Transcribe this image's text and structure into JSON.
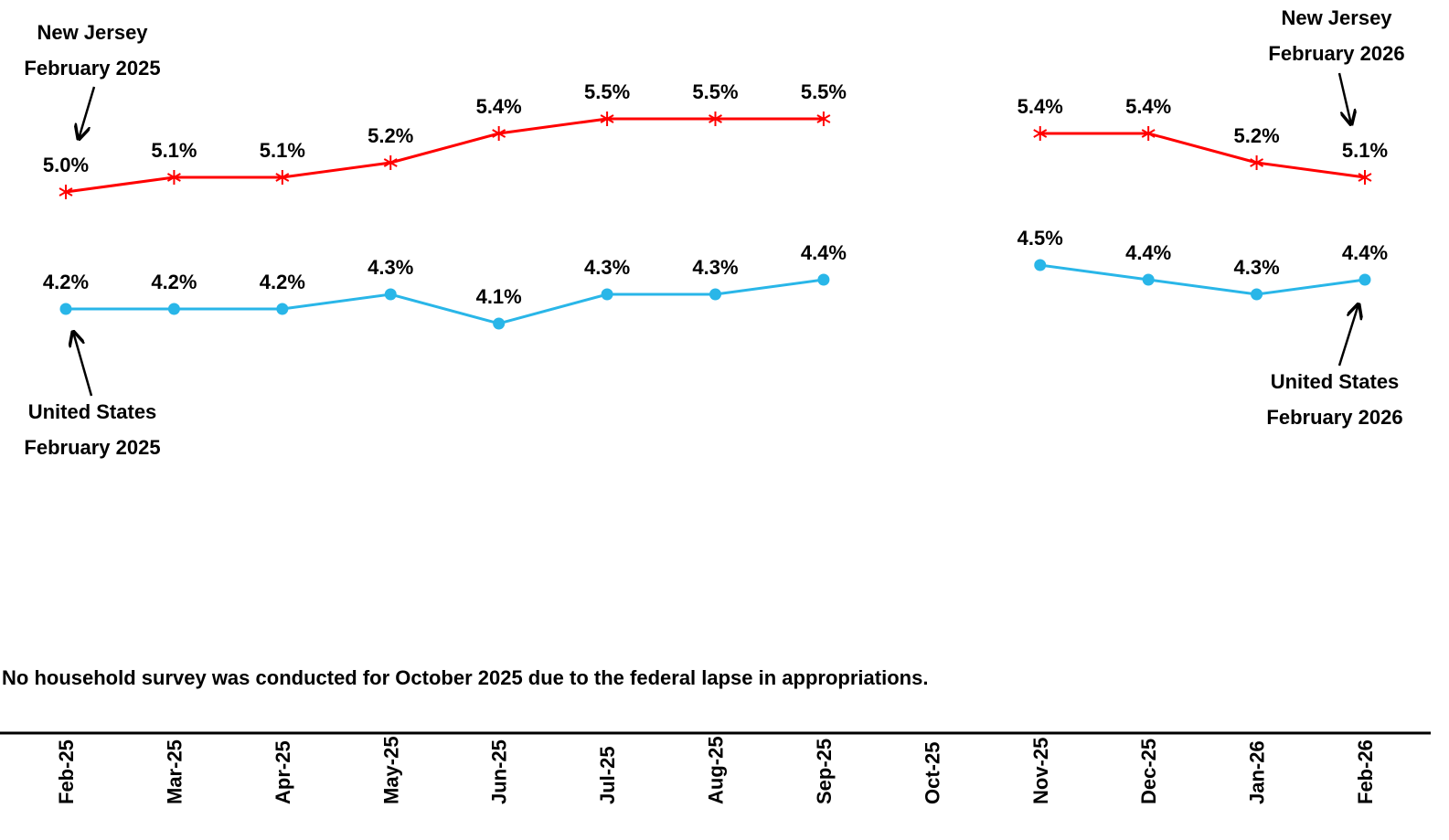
{
  "chart_data": {
    "type": "line",
    "categories": [
      "Feb-25",
      "Mar-25",
      "Apr-25",
      "May-25",
      "Jun-25",
      "Jul-25",
      "Aug-25",
      "Sep-25",
      "Oct-25",
      "Nov-25",
      "Dec-25",
      "Jan-26",
      "Feb-26"
    ],
    "ylim": [
      3.0,
      5.8
    ],
    "series": [
      {
        "name": "New Jersey",
        "color": "#ff0000",
        "marker": "asterisk",
        "values": [
          5.0,
          5.1,
          5.1,
          5.2,
          5.4,
          5.5,
          5.5,
          5.5,
          null,
          5.4,
          5.4,
          5.2,
          5.1
        ],
        "value_labels": [
          "5.0%",
          "5.1%",
          "5.1%",
          "5.2%",
          "5.4%",
          "5.5%",
          "5.5%",
          "5.5%",
          null,
          "5.4%",
          "5.4%",
          "5.2%",
          "5.1%"
        ]
      },
      {
        "name": "United States",
        "color": "#29b6e8",
        "marker": "circle",
        "values": [
          4.2,
          4.2,
          4.2,
          4.3,
          4.1,
          4.3,
          4.3,
          4.4,
          null,
          4.5,
          4.4,
          4.3,
          4.4
        ],
        "value_labels": [
          "4.2%",
          "4.2%",
          "4.2%",
          "4.3%",
          "4.1%",
          "4.3%",
          "4.3%",
          "4.4%",
          null,
          "4.5%",
          "4.4%",
          "4.3%",
          "4.4%"
        ]
      }
    ],
    "annotations": [
      {
        "lines": [
          "New Jersey",
          "February 2025"
        ]
      },
      {
        "lines": [
          "New Jersey",
          "February 2026"
        ]
      },
      {
        "lines": [
          "United States",
          "February 2025"
        ]
      },
      {
        "lines": [
          "United States",
          "February 2026"
        ]
      }
    ],
    "note": "No household survey was conducted for October 2025 due to the federal lapse in appropriations."
  }
}
